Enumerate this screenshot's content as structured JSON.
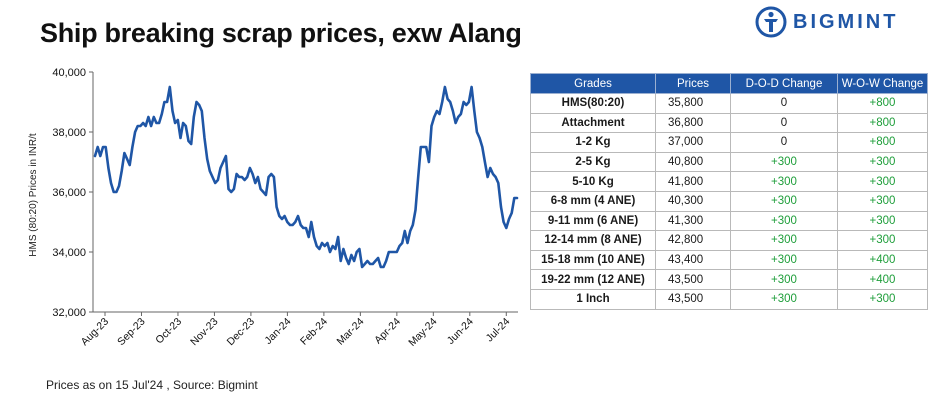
{
  "title": "Ship breaking scrap prices, exw Alang",
  "logo": {
    "text": "BIGMINT",
    "icon": "bigmint-logo-icon",
    "color": "#1f56a6"
  },
  "footer": "Prices as on 15 Jul'24 , Source:  Bigmint",
  "chart_data": {
    "type": "line",
    "title": "Ship breaking scrap prices, exw Alang",
    "ylabel": "HMS (80:20) Prices in INR/t",
    "xlabel": "",
    "ylim": [
      32000,
      40000
    ],
    "yticks": [
      32000,
      34000,
      36000,
      38000,
      40000
    ],
    "ytick_labels": [
      "32,000",
      "34,000",
      "36,000",
      "38,000",
      "40,000"
    ],
    "xtick_labels": [
      "Aug-23",
      "Sep-23",
      "Oct-23",
      "Nov-23",
      "Dec-23",
      "Jan-24",
      "Feb-24",
      "Mar-24",
      "Apr-24",
      "May-24",
      "Jun-24",
      "Jul-24"
    ],
    "grid": false,
    "legend": "none",
    "color": "#1f56a6",
    "series": [
      {
        "values": [
          37200,
          37500,
          37200,
          37500,
          37500,
          36800,
          36300,
          36000,
          36000,
          36200,
          36700,
          37300,
          37100,
          36900,
          37500,
          38000,
          38200,
          38200,
          38300,
          38200,
          38500,
          38200,
          38500,
          38300,
          38300,
          38600,
          39000,
          39000,
          39500,
          38700,
          38300,
          38400,
          37800,
          38300,
          38200,
          37700,
          37600,
          38500,
          39000,
          38900,
          38700,
          37800,
          37100,
          36700,
          36500,
          36300,
          36400,
          36800,
          37000,
          37200,
          36100,
          36000,
          36100,
          36600,
          36500,
          36500,
          36400,
          36500,
          36800,
          36600,
          36300,
          36500,
          36100,
          36000,
          35900,
          36500,
          36600,
          36500,
          35500,
          35200,
          35100,
          35200,
          35000,
          34900,
          34900,
          35000,
          35200,
          34900,
          34800,
          34800,
          34500,
          35000,
          34500,
          34200,
          34100,
          34300,
          34200,
          34300,
          34000,
          34200,
          34100,
          34500,
          33700,
          34100,
          33800,
          33600,
          33900,
          33700,
          34000,
          34100,
          33500,
          33600,
          33700,
          33600,
          33600,
          33700,
          33800,
          33500,
          33500,
          33700,
          34000,
          34000,
          34000,
          34000,
          34200,
          34300,
          34700,
          34300,
          34700,
          34900,
          35400,
          36500,
          37500,
          37500,
          37500,
          37000,
          38200,
          38500,
          38700,
          38600,
          39000,
          39500,
          39100,
          39000,
          38700,
          38300,
          38500,
          38600,
          39000,
          38900,
          39000,
          39500,
          38700,
          38000,
          37800,
          37500,
          37000,
          36500,
          36800,
          36600,
          36500,
          36300,
          35500,
          35000,
          34800,
          35100,
          35300,
          35800,
          35800
        ]
      }
    ]
  },
  "table": {
    "headers": [
      "Grades",
      "Prices",
      "D-O-D Change",
      "W-O-W Change"
    ],
    "rows": [
      {
        "grade": "HMS(80:20)",
        "price": "35,800",
        "dod": "0",
        "wow": "+800"
      },
      {
        "grade": "Attachment",
        "price": "36,800",
        "dod": "0",
        "wow": "+800"
      },
      {
        "grade": "1-2 Kg",
        "price": "37,000",
        "dod": "0",
        "wow": "+800"
      },
      {
        "grade": "2-5 Kg",
        "price": "40,800",
        "dod": "+300",
        "wow": "+300"
      },
      {
        "grade": "5-10 Kg",
        "price": "41,800",
        "dod": "+300",
        "wow": "+300"
      },
      {
        "grade": "6-8 mm (4 ANE)",
        "price": "40,300",
        "dod": "+300",
        "wow": "+300"
      },
      {
        "grade": "9-11 mm (6 ANE)",
        "price": "41,300",
        "dod": "+300",
        "wow": "+300"
      },
      {
        "grade": "12-14 mm (8 ANE)",
        "price": "42,800",
        "dod": "+300",
        "wow": "+300"
      },
      {
        "grade": "15-18 mm (10 ANE)",
        "price": "43,400",
        "dod": "+300",
        "wow": "+400"
      },
      {
        "grade": "19-22 mm (12 ANE)",
        "price": "43,500",
        "dod": "+300",
        "wow": "+400"
      },
      {
        "grade": "1 Inch",
        "price": "43,500",
        "dod": "+300",
        "wow": "+300"
      }
    ]
  }
}
